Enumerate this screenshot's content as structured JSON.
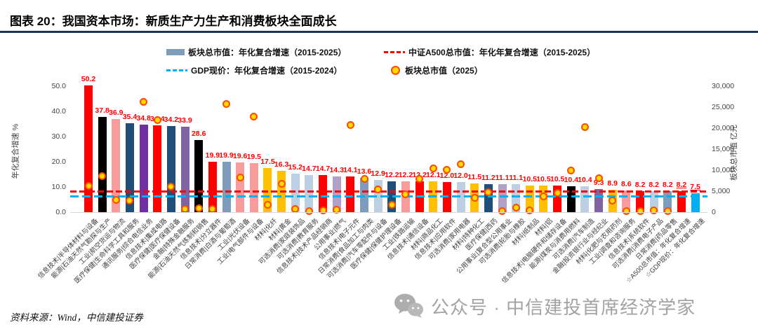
{
  "header": {
    "title": "图表 20：我国资本市场：新质生产力生产和消费板块全面成长"
  },
  "legend": {
    "items": [
      {
        "label": "板块总市值：年化复合增速（2015-2025）",
        "marker": "bar",
        "color": "#7F9DB9"
      },
      {
        "label": "中证A500总市值：年化年复合增速（2015-2025）",
        "marker": "dashes",
        "color": "#FF0000"
      },
      {
        "label": "GDP现价：年化复合增速（2015-2024）",
        "marker": "dashes",
        "color": "#00B0F0"
      },
      {
        "label": "板块总市值（2025）",
        "marker": "dot",
        "color": "#FFC000"
      }
    ]
  },
  "colors": {
    "divider": "#17375E",
    "value_label": "#FF0000",
    "dot_fill": "#FFD800",
    "dot_ring": "#FF4B00",
    "sector_信息技术": "#FF0000",
    "sector_能源": "#000000",
    "sector_工业": "#F79B9B",
    "sector_医疗保健": "#1F4E79",
    "sector_通讯服务": "#7030A0",
    "sector_金融": "#8064A2",
    "sector_日常消费": "#7E9DBD",
    "sector_可选消费": "#BDD0E3",
    "sector_材料": "#FFC000",
    "sector_公用事业": "#B2A1C7",
    "a500_bar": "#FF0000",
    "gdp_bar": "#00B0F0"
  },
  "chart_data": {
    "type": "bar",
    "title": "我国资本市场：新质生产力生产和消费板块全面成长",
    "left_axis": {
      "label": "年化复合增速 %",
      "min": 0,
      "max": 50,
      "ticks": [
        "0.0",
        "10.0",
        "20.0",
        "30.0",
        "40.0",
        "50.0"
      ]
    },
    "right_axis": {
      "label": "板块总市值 亿元",
      "min": 0,
      "max": 30000,
      "ticks": [
        "0",
        "5,000",
        "10,000",
        "15,000",
        "20,000",
        "25,000",
        "30,000"
      ]
    },
    "reference_lines": [
      {
        "name": "中证A500总市值年化复合增速",
        "value": 8.2,
        "color": "#FF0000"
      },
      {
        "name": "GDP现价年化复合增速",
        "value": 7.5,
        "color": "#00B0F0"
      }
    ],
    "series_note": "bars = 年化复合增速(2015-2025, 左轴%); dot = 板块总市值2025(右轴,亿元)",
    "bars": [
      {
        "label": "信息技术|半导体材料与设备",
        "display": "50.2",
        "value": 50.2,
        "color": "#FF0000",
        "dot": 6300
      },
      {
        "label": "能源|石油天然气勘探与生产",
        "display": "37.8",
        "value": 37.8,
        "color": "#000000",
        "dot": 8600
      },
      {
        "label": "工业|航空货运与物流",
        "display": "36.9",
        "value": 36.9,
        "color": "#F79B9B",
        "dot": 3000
      },
      {
        "label": "医疗保健|生命科学工具和服务",
        "display": "35.4",
        "value": 35.4,
        "color": "#1F4E79",
        "dot": 2800
      },
      {
        "label": "通讯服务|综合电信业务",
        "display": "34.8",
        "value": 34.8,
        "color": "#7030A0",
        "dot": 26300
      },
      {
        "label": "信息技术|集成电路",
        "display": "34.4",
        "value": 34.4,
        "color": "#FF0000",
        "dot": 22000
      },
      {
        "label": "医疗保健|医疗保健设备",
        "display": "34.2",
        "value": 34.2,
        "color": "#1F4E79",
        "dot": 6100
      },
      {
        "label": "金融|特殊金融服务",
        "display": "33.9",
        "value": 33.9,
        "color": "#8064A2",
        "dot": 800
      },
      {
        "label": "能源|石油天然气炼制和销售",
        "display": "28.6",
        "value": 28.6,
        "color": "#000000",
        "dot": 950
      },
      {
        "label": "信息技术|分立器件",
        "display": "19.9",
        "value": 19.9,
        "color": "#FF0000",
        "dot": 700
      },
      {
        "label": "日常消费|白酒与葡萄酒",
        "display": "19.9",
        "value": 19.9,
        "color": "#7E9DBD",
        "dot": 25800
      },
      {
        "label": "工业|光伏设备",
        "display": "19.6",
        "value": 19.6,
        "color": "#F79B9B",
        "dot": 8200
      },
      {
        "label": "工业|电气部件与设备",
        "display": "19.5",
        "value": 19.5,
        "color": "#F79B9B",
        "dot": 22700
      },
      {
        "label": "材料|化纤",
        "display": "17.5",
        "value": 17.5,
        "color": "#FFC000",
        "dot": 1700
      },
      {
        "label": "材料|黄金",
        "display": "16.3",
        "value": 16.3,
        "color": "#FFC000",
        "dot": 6700
      },
      {
        "label": "可选消费|家庭装饰品",
        "display": "15.2",
        "value": 15.2,
        "color": "#BDD0E3",
        "dot": 700
      },
      {
        "label": "可选消费|教育服务",
        "display": "14.7",
        "value": 14.7,
        "color": "#BDD0E3",
        "dot": 200
      },
      {
        "label": "信息技术|技术产品经销商",
        "display": "14.7",
        "value": 14.7,
        "color": "#FF0000",
        "dot": 450
      },
      {
        "label": "公用事业|燃气",
        "display": "14.3",
        "value": 14.3,
        "color": "#B2A1C7",
        "dot": 550
      },
      {
        "label": "信息技术|电子元件",
        "display": "14.1",
        "value": 14.1,
        "color": "#FF0000",
        "dot": 20700
      },
      {
        "label": "日常消费|食品加工与肉类",
        "display": "13.6",
        "value": 13.6,
        "color": "#7E9DBD",
        "dot": 8000
      },
      {
        "label": "可选消费|汽车零配件与设备",
        "display": "12.9",
        "value": 12.9,
        "color": "#BDD0E3",
        "dot": 5500
      },
      {
        "label": "医疗保健|保健护理设备",
        "display": "12.2",
        "value": 12.2,
        "color": "#1F4E79",
        "dot": 1700
      },
      {
        "label": "工业|铁路运输",
        "display": "12.2",
        "value": 12.2,
        "color": "#F79B9B",
        "dot": 4200
      },
      {
        "label": "信息技术|通信设备",
        "display": "12.2",
        "value": 12.2,
        "color": "#FF0000",
        "dot": 8000
      },
      {
        "label": "材料|商品化工",
        "display": "12.1",
        "value": 12.1,
        "color": "#FFC000",
        "dot": 10400
      },
      {
        "label": "信息技术|应用软件",
        "display": "12.0",
        "value": 12.0,
        "color": "#FF0000",
        "dot": 10100
      },
      {
        "label": "可选消费|家用电器",
        "display": "12.0",
        "value": 12.0,
        "color": "#BDD0E3",
        "dot": 11400
      },
      {
        "label": "材料|特种化工",
        "display": "11.5",
        "value": 11.5,
        "color": "#FFC000",
        "dot": 3500
      },
      {
        "label": "医疗保健|西药",
        "display": "11.2",
        "value": 11.2,
        "color": "#1F4E79",
        "dot": 4700
      },
      {
        "label": "公用事业|复合型公用事业",
        "display": "11.1",
        "value": 11.1,
        "color": "#B2A1C7",
        "dot": 200
      },
      {
        "label": "可选消费|轮胎与橡胶",
        "display": "11.1",
        "value": 11.1,
        "color": "#BDD0E3",
        "dot": 1100
      },
      {
        "label": "材料|纸制品",
        "display": "10.5",
        "value": 10.5,
        "color": "#FFC000",
        "dot": 450
      },
      {
        "label": "材料|铝",
        "display": "10.5",
        "value": 10.5,
        "color": "#FFC000",
        "dot": 3800
      },
      {
        "label": "信息技术|电脑硬件和储存设备",
        "display": "10.5",
        "value": 10.5,
        "color": "#FF0000",
        "dot": 4600
      },
      {
        "label": "能源|煤炭与消费用燃料",
        "display": "10.4",
        "value": 10.4,
        "color": "#000000",
        "dot": 10000
      },
      {
        "label": "可选消费|汽车制造",
        "display": "10.4",
        "value": 10.4,
        "color": "#BDD0E3",
        "dot": 20300
      },
      {
        "label": "金融|投资银行业与经纪业",
        "display": "9.3",
        "value": 9.3,
        "color": "#8064A2",
        "dot": 8100
      },
      {
        "label": "材料|化肥与农用药剂",
        "display": "8.9",
        "value": 8.9,
        "color": "#FFC000",
        "dot": 2800
      },
      {
        "label": "工业|调查和咨询服务",
        "display": "8.6",
        "value": 8.6,
        "color": "#F79B9B",
        "dot": 200
      },
      {
        "label": "信息技术|系统软件",
        "display": "8.2",
        "value": 8.2,
        "color": "#FF0000",
        "dot": 330
      },
      {
        "label": "可选消费|消费电子产品",
        "display": "8.2",
        "value": 8.2,
        "color": "#BDD0E3",
        "dot": 450
      },
      {
        "label": "日常消费|药品零售",
        "display": "8.2",
        "value": 8.2,
        "color": "#7E9DBD",
        "dot": 280
      },
      {
        "label": "☆A500总市值：年化复合增速",
        "display": "8.2",
        "value": 8.2,
        "color": "#FF0000",
        "dot": null,
        "underline": true
      },
      {
        "label": "☆GDP现价：年化复合增速",
        "display": "7.5",
        "value": 7.5,
        "color": "#00B0F0",
        "dot": null,
        "underline": true
      }
    ]
  },
  "footer": {
    "source": "资料来源：Wind，中信建投证券",
    "watermark": "公众号 · 中信建投首席经济学家"
  }
}
